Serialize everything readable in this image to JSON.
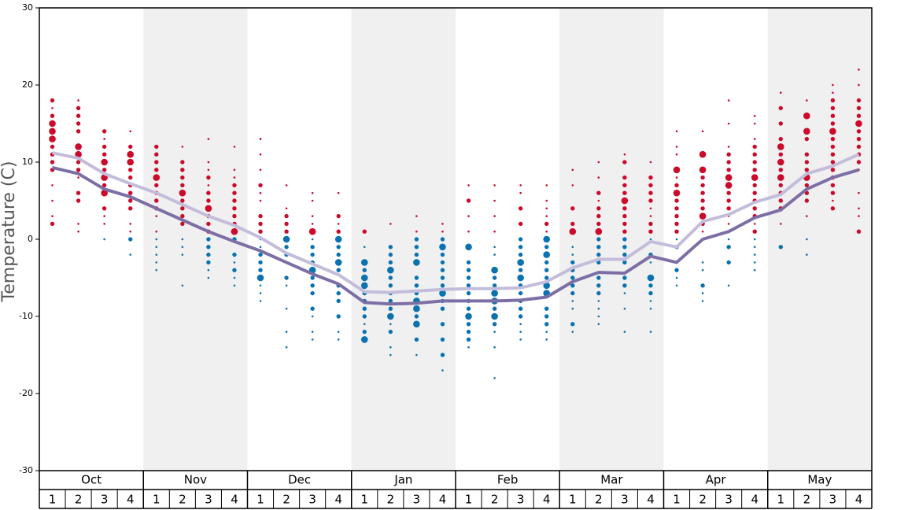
{
  "chart_data": {
    "type": "dot-temperature",
    "ylabel": "Temperature (C)",
    "ylim": [
      -30,
      30
    ],
    "yticks": [
      -30,
      -20,
      -10,
      0,
      10,
      20,
      30
    ],
    "months": [
      "Oct",
      "Nov",
      "Dec",
      "Jan",
      "Feb",
      "Mar",
      "Apr",
      "May"
    ],
    "week_labels": [
      "1",
      "2",
      "3",
      "4"
    ],
    "band_color": "#f0f0f0",
    "warm_color": "#cc0a2a",
    "cold_color": "#0a72b0",
    "series": [
      {
        "color": "#c3bddb",
        "values": [
          11.2,
          10.5,
          8.5,
          7.2,
          6.0,
          4.5,
          3.0,
          1.8,
          0.2,
          -1.8,
          -3.2,
          -4.6,
          -6.8,
          -6.9,
          -6.7,
          -6.5,
          -6.4,
          -6.4,
          -6.3,
          -5.5,
          -3.7,
          -2.6,
          -2.6,
          -0.3,
          -1.0,
          2.3,
          3.2,
          4.8,
          5.8,
          8.5,
          9.5,
          11.0
        ]
      },
      {
        "color": "#7d6fa5",
        "values": [
          9.3,
          8.5,
          6.5,
          5.5,
          4.0,
          2.5,
          1.0,
          -0.3,
          -1.5,
          -3.0,
          -4.5,
          -5.8,
          -8.2,
          -8.4,
          -8.3,
          -8.0,
          -8.0,
          -8.0,
          -7.9,
          -7.5,
          -5.5,
          -4.3,
          -4.4,
          -2.2,
          -3.0,
          0.0,
          1.0,
          2.8,
          3.8,
          6.5,
          8.0,
          9.0
        ]
      }
    ],
    "dots": [
      {
        "temps": [
          18,
          17,
          16,
          15,
          14,
          13,
          12,
          11,
          10,
          9,
          7,
          5,
          3,
          2
        ],
        "sizes": [
          2,
          1,
          2,
          3,
          3,
          3,
          2,
          2,
          2,
          2,
          1,
          1,
          1,
          2
        ]
      },
      {
        "temps": [
          18,
          17,
          16,
          15,
          14,
          12,
          11,
          10,
          9,
          8,
          6,
          5,
          2,
          1
        ],
        "sizes": [
          1,
          2,
          2,
          2,
          2,
          3,
          3,
          2,
          2,
          1,
          2,
          2,
          1,
          1
        ]
      },
      {
        "temps": [
          14,
          13,
          12,
          11,
          10,
          9,
          8,
          7,
          6,
          4,
          3,
          2,
          0
        ],
        "sizes": [
          2,
          1,
          2,
          2,
          3,
          2,
          3,
          2,
          3,
          2,
          1,
          1,
          1
        ]
      },
      {
        "temps": [
          14,
          12,
          11,
          10,
          9,
          8,
          7,
          6,
          5,
          4,
          2,
          1,
          0,
          -2
        ],
        "sizes": [
          1,
          2,
          3,
          3,
          2,
          2,
          2,
          2,
          2,
          2,
          1,
          1,
          2,
          1
        ]
      },
      {
        "temps": [
          12,
          11,
          10,
          9,
          8,
          7,
          6,
          5,
          4,
          3,
          1,
          0,
          -1,
          -2,
          -3,
          -4
        ],
        "sizes": [
          2,
          2,
          2,
          2,
          3,
          2,
          2,
          2,
          2,
          1,
          1,
          1,
          1,
          1,
          1,
          1
        ]
      },
      {
        "temps": [
          12,
          10,
          9,
          8,
          7,
          6,
          5,
          4,
          3,
          2,
          0,
          -1,
          -2,
          -6
        ],
        "sizes": [
          1,
          2,
          2,
          2,
          2,
          3,
          2,
          2,
          2,
          2,
          1,
          1,
          1,
          1
        ]
      },
      {
        "temps": [
          13,
          10,
          9,
          8,
          7,
          6,
          5,
          4,
          3,
          2,
          1,
          0,
          -1,
          -2,
          -3,
          -4,
          -5
        ],
        "sizes": [
          1,
          1,
          1,
          2,
          1,
          2,
          2,
          3,
          2,
          2,
          2,
          2,
          2,
          2,
          2,
          1,
          1
        ]
      },
      {
        "temps": [
          12,
          9,
          8,
          7,
          6,
          5,
          4,
          3,
          2,
          1,
          0,
          -2,
          -3,
          -4,
          -5,
          -6
        ],
        "sizes": [
          1,
          1,
          1,
          2,
          2,
          2,
          2,
          2,
          2,
          3,
          2,
          2,
          1,
          2,
          1,
          1
        ]
      },
      {
        "temps": [
          13,
          11,
          9,
          7,
          6,
          5,
          3,
          2,
          1,
          0,
          -1,
          -2,
          -3,
          -4,
          -5,
          -6,
          -7,
          -8
        ],
        "sizes": [
          1,
          1,
          1,
          2,
          1,
          1,
          2,
          2,
          2,
          1,
          1,
          2,
          2,
          2,
          3,
          1,
          1,
          1
        ]
      },
      {
        "temps": [
          7,
          4,
          3,
          2,
          1,
          0,
          -1,
          -2,
          -3,
          -5,
          -6,
          -9,
          -12,
          -14
        ],
        "sizes": [
          1,
          1,
          2,
          2,
          2,
          3,
          2,
          2,
          1,
          2,
          1,
          1,
          1,
          1
        ]
      },
      {
        "temps": [
          6,
          5,
          3,
          2,
          1,
          0,
          -1,
          -2,
          -3,
          -4,
          -5,
          -6,
          -7,
          -9,
          -10,
          -12,
          -13
        ],
        "sizes": [
          1,
          1,
          1,
          1,
          3,
          1,
          2,
          2,
          2,
          3,
          2,
          2,
          2,
          2,
          1,
          1,
          1
        ]
      },
      {
        "temps": [
          6,
          3,
          2,
          1,
          0,
          -1,
          -2,
          -3,
          -4,
          -6,
          -7,
          -8,
          -10,
          -12,
          -13
        ],
        "sizes": [
          1,
          2,
          1,
          2,
          3,
          2,
          2,
          3,
          2,
          2,
          2,
          2,
          2,
          1,
          1
        ]
      },
      {
        "temps": [
          1,
          -1,
          -3,
          -4,
          -5,
          -6,
          -7,
          -8,
          -9,
          -10,
          -11,
          -12,
          -13
        ],
        "sizes": [
          2,
          1,
          3,
          2,
          3,
          3,
          2,
          2,
          2,
          2,
          1,
          2,
          3
        ]
      },
      {
        "temps": [
          2,
          -1,
          -2,
          -3,
          -4,
          -5,
          -6,
          -7,
          -8,
          -9,
          -10,
          -11,
          -12,
          -14,
          -15
        ],
        "sizes": [
          1,
          2,
          2,
          2,
          3,
          2,
          2,
          2,
          2,
          2,
          3,
          1,
          2,
          1,
          1
        ]
      },
      {
        "temps": [
          3,
          1,
          0,
          -1,
          -2,
          -3,
          -5,
          -6,
          -7,
          -8,
          -9,
          -10,
          -11,
          -13,
          -15
        ],
        "sizes": [
          1,
          1,
          2,
          2,
          2,
          3,
          2,
          2,
          2,
          3,
          3,
          2,
          3,
          2,
          1
        ]
      },
      {
        "temps": [
          2,
          1,
          0,
          -1,
          -2,
          -3,
          -4,
          -5,
          -6,
          -7,
          -8,
          -9,
          -11,
          -13,
          -15,
          -17
        ],
        "sizes": [
          1,
          1,
          2,
          3,
          2,
          2,
          2,
          2,
          2,
          3,
          2,
          2,
          2,
          2,
          2,
          1
        ]
      },
      {
        "temps": [
          7,
          5,
          3,
          1,
          -1,
          -3,
          -4,
          -5,
          -6,
          -7,
          -8,
          -9,
          -10,
          -11,
          -12,
          -13,
          -14
        ],
        "sizes": [
          1,
          2,
          1,
          1,
          3,
          2,
          2,
          2,
          2,
          2,
          2,
          2,
          3,
          2,
          2,
          2,
          1
        ]
      },
      {
        "temps": [
          7,
          5,
          3,
          1,
          -1,
          -2,
          -4,
          -5,
          -6,
          -7,
          -8,
          -9,
          -10,
          -11,
          -12,
          -14,
          -18
        ],
        "sizes": [
          1,
          1,
          1,
          1,
          1,
          1,
          3,
          2,
          2,
          3,
          3,
          2,
          3,
          2,
          1,
          1,
          1
        ]
      },
      {
        "temps": [
          7,
          6,
          4,
          2,
          0,
          -1,
          -2,
          -3,
          -4,
          -5,
          -6,
          -7,
          -8,
          -9,
          -10,
          -11,
          -12,
          -13
        ],
        "sizes": [
          1,
          1,
          2,
          2,
          2,
          2,
          2,
          3,
          2,
          3,
          2,
          2,
          2,
          2,
          2,
          1,
          1,
          1
        ]
      },
      {
        "temps": [
          7,
          5,
          4,
          3,
          2,
          1,
          0,
          -1,
          -2,
          -3,
          -4,
          -5,
          -6,
          -7,
          -9,
          -10,
          -11,
          -12,
          -13
        ],
        "sizes": [
          1,
          1,
          1,
          1,
          2,
          1,
          3,
          2,
          3,
          2,
          2,
          2,
          3,
          3,
          2,
          2,
          2,
          1,
          1
        ]
      },
      {
        "temps": [
          9,
          7,
          4,
          2,
          1,
          -1,
          -2,
          -3,
          -4,
          -5,
          -6,
          -7,
          -8,
          -9,
          -11,
          -12
        ],
        "sizes": [
          1,
          1,
          2,
          2,
          3,
          1,
          1,
          2,
          2,
          2,
          2,
          2,
          1,
          1,
          2,
          1
        ]
      },
      {
        "temps": [
          10,
          8,
          6,
          5,
          4,
          3,
          2,
          1,
          0,
          -1,
          -2,
          -3,
          -5,
          -6,
          -7,
          -8,
          -9,
          -10,
          -11
        ],
        "sizes": [
          1,
          1,
          2,
          1,
          2,
          2,
          2,
          3,
          2,
          2,
          2,
          2,
          2,
          2,
          2,
          1,
          1,
          1,
          1
        ]
      },
      {
        "temps": [
          11,
          10,
          8,
          7,
          6,
          5,
          4,
          3,
          2,
          1,
          0,
          -1,
          -2,
          -3,
          -5,
          -6,
          -7,
          -9,
          -12
        ],
        "sizes": [
          1,
          2,
          2,
          2,
          2,
          3,
          2,
          2,
          2,
          2,
          2,
          2,
          2,
          2,
          2,
          2,
          1,
          1,
          1
        ]
      },
      {
        "temps": [
          10,
          8,
          7,
          6,
          5,
          4,
          3,
          2,
          1,
          0,
          -2,
          -3,
          -5,
          -6,
          -7,
          -8,
          -9,
          -12
        ],
        "sizes": [
          1,
          2,
          2,
          2,
          2,
          1,
          1,
          2,
          2,
          1,
          2,
          1,
          3,
          2,
          2,
          1,
          1,
          1
        ]
      },
      {
        "temps": [
          14,
          12,
          11,
          9,
          8,
          7,
          6,
          5,
          4,
          3,
          2,
          1,
          0,
          -1,
          -3,
          -4,
          -5,
          -6
        ],
        "sizes": [
          1,
          1,
          1,
          3,
          1,
          2,
          3,
          2,
          2,
          2,
          2,
          2,
          1,
          2,
          1,
          2,
          1,
          1
        ]
      },
      {
        "temps": [
          14,
          11,
          9,
          8,
          7,
          6,
          5,
          4,
          3,
          2,
          1,
          0,
          -3,
          -4,
          -6,
          -7,
          -8
        ],
        "sizes": [
          1,
          3,
          3,
          2,
          2,
          2,
          2,
          2,
          3,
          2,
          1,
          1,
          1,
          1,
          2,
          1,
          1
        ]
      },
      {
        "temps": [
          18,
          15,
          12,
          11,
          10,
          9,
          8,
          7,
          6,
          5,
          4,
          3,
          2,
          1,
          0,
          -1,
          -3,
          -6
        ],
        "sizes": [
          1,
          1,
          1,
          2,
          2,
          2,
          3,
          3,
          2,
          2,
          2,
          1,
          1,
          1,
          1,
          2,
          2,
          1
        ]
      },
      {
        "temps": [
          16,
          15,
          13,
          12,
          11,
          10,
          9,
          8,
          7,
          6,
          5,
          4,
          3,
          2,
          1,
          0,
          -1,
          -2,
          -3,
          -4
        ],
        "sizes": [
          1,
          1,
          1,
          2,
          2,
          2,
          2,
          3,
          2,
          2,
          2,
          2,
          2,
          1,
          2,
          1,
          1,
          1,
          1,
          1
        ]
      },
      {
        "temps": [
          19,
          17,
          15,
          13,
          12,
          11,
          10,
          9,
          8,
          7,
          6,
          5,
          4,
          2,
          -1
        ],
        "sizes": [
          1,
          2,
          2,
          2,
          3,
          2,
          3,
          2,
          3,
          2,
          2,
          2,
          2,
          1,
          2
        ]
      },
      {
        "temps": [
          18,
          16,
          14,
          13,
          11,
          10,
          9,
          8,
          7,
          6,
          5,
          3,
          0,
          -2
        ],
        "sizes": [
          1,
          3,
          3,
          2,
          2,
          2,
          2,
          3,
          2,
          2,
          2,
          1,
          1,
          1
        ]
      },
      {
        "temps": [
          20,
          19,
          18,
          17,
          16,
          15,
          14,
          13,
          12,
          11,
          10,
          9,
          8,
          7,
          6,
          5,
          4
        ],
        "sizes": [
          1,
          1,
          2,
          2,
          2,
          2,
          3,
          2,
          2,
          2,
          2,
          2,
          2,
          2,
          2,
          1,
          2
        ]
      },
      {
        "temps": [
          22,
          20,
          18,
          17,
          16,
          15,
          14,
          13,
          12,
          11,
          10,
          9,
          6,
          4,
          3,
          1
        ],
        "sizes": [
          1,
          1,
          2,
          2,
          2,
          3,
          2,
          2,
          2,
          2,
          2,
          1,
          1,
          1,
          1,
          2
        ]
      }
    ]
  }
}
